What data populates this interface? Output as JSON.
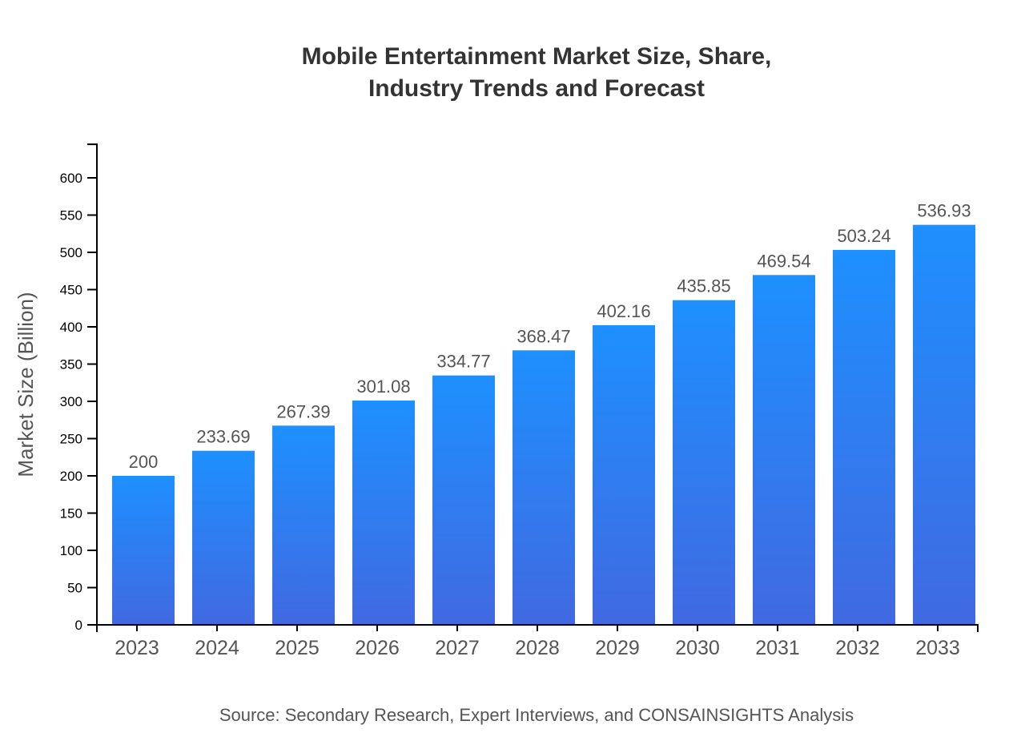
{
  "chart_data": {
    "type": "bar",
    "title": [
      "Mobile Entertainment Market Size, Share,",
      "Industry Trends and Forecast"
    ],
    "xlabel": "",
    "ylabel": "Market Size (Billion)",
    "categories": [
      "2023",
      "2024",
      "2025",
      "2026",
      "2027",
      "2028",
      "2029",
      "2030",
      "2031",
      "2032",
      "2033"
    ],
    "values": [
      200,
      233.69,
      267.39,
      301.08,
      334.77,
      368.47,
      402.16,
      435.85,
      469.54,
      503.24,
      536.93
    ],
    "ylim": [
      0,
      645
    ],
    "yticks": [
      0,
      50,
      100,
      150,
      200,
      250,
      300,
      350,
      400,
      450,
      500,
      550,
      600
    ],
    "grid": false,
    "legend": "none",
    "colors": {
      "bar_top": "#1e90ff",
      "bar_bottom": "#4169e1"
    },
    "source": "Source: Secondary Research, Expert Interviews, and CONSAINSIGHTS Analysis"
  }
}
